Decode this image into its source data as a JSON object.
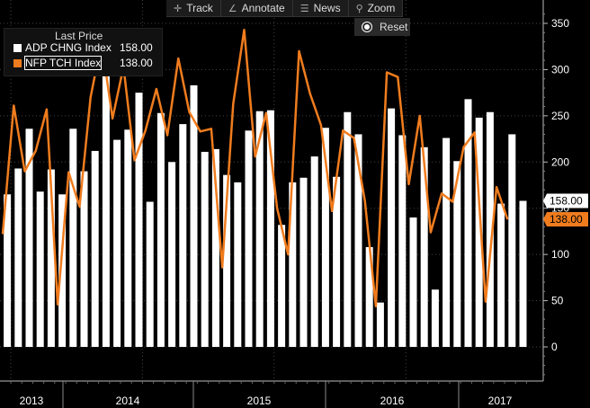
{
  "toolbar": {
    "track": "Track",
    "annotate": "Annotate",
    "news": "News",
    "zoom": "Zoom",
    "reset": "Reset"
  },
  "legend": {
    "title": "Last Price",
    "items": [
      {
        "name": "ADP CHNG Index",
        "value": "158.00",
        "color": "#ffffff"
      },
      {
        "name": "NFP TCH Index",
        "value": "138.00",
        "color": "#f07c1e"
      }
    ]
  },
  "colors": {
    "background": "#000000",
    "adp": "#ffffff",
    "nfp": "#f07c1e",
    "grid": "#444444"
  },
  "chart_data": {
    "type": "bar",
    "ylim": [
      -40,
      370
    ],
    "yticks": [
      0,
      50,
      100,
      150,
      200,
      250,
      300,
      350
    ],
    "year_labels": [
      "2013",
      "2014",
      "2015",
      "2016",
      "2017"
    ],
    "month_index_start": "2013-01",
    "series": [
      {
        "name": "ADP CHNG Index",
        "kind": "bar",
        "values": [
          165,
          193,
          236,
          168,
          192,
          165,
          236,
          190,
          212,
          330,
          224,
          235,
          275,
          157,
          253,
          200,
          241,
          283,
          211,
          214,
          186,
          178,
          234,
          255,
          256,
          132,
          178,
          183,
          206,
          237,
          184,
          254,
          230,
          108,
          48,
          258,
          229,
          140,
          216,
          62,
          226,
          201,
          268,
          248,
          254,
          155,
          230,
          158
        ],
        "last_value": 158.0
      },
      {
        "name": "NFP TCH Index",
        "kind": "line",
        "values": [
          122,
          261,
          190,
          212,
          257,
          46,
          189,
          152,
          270,
          330,
          247,
          303,
          202,
          234,
          279,
          229,
          312,
          254,
          233,
          236,
          86,
          263,
          343,
          206,
          253,
          150,
          100,
          320,
          274,
          240,
          147,
          234,
          226,
          158,
          44,
          297,
          292,
          176,
          250,
          124,
          166,
          157,
          216,
          232,
          49,
          173,
          138
        ],
        "last_value": 138.0
      }
    ]
  }
}
